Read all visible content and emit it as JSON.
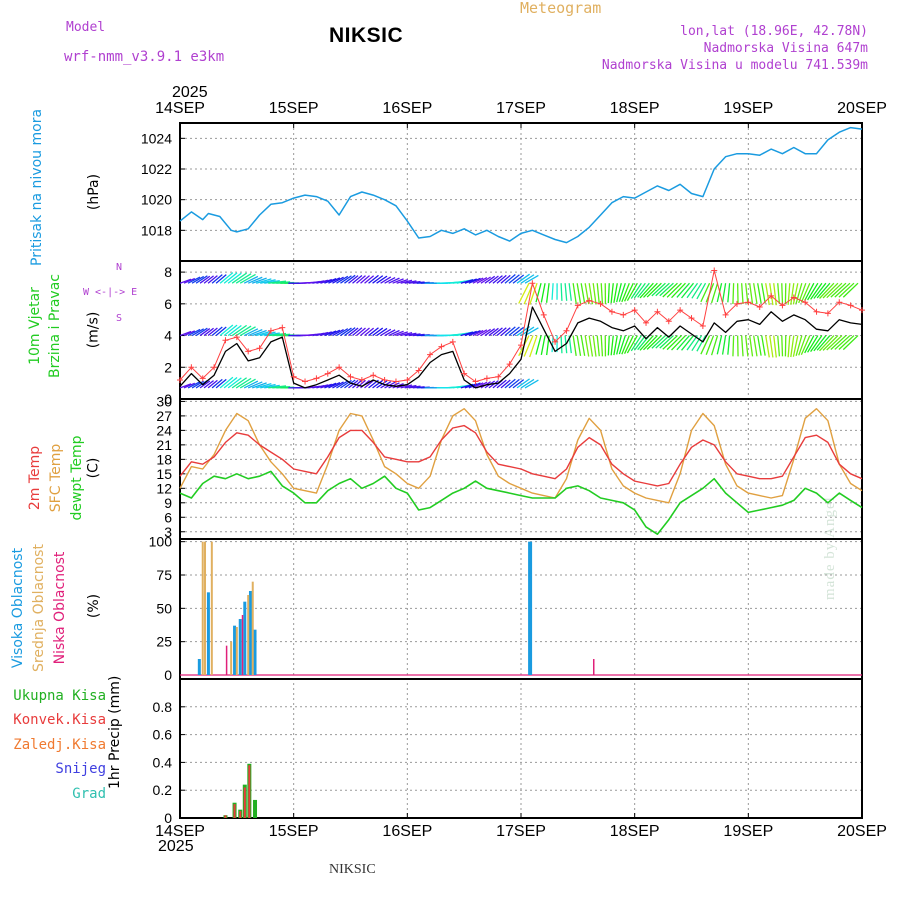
{
  "header": {
    "model_label": "Model",
    "model_name": "wrf-nmm_v3.9.1 e3km",
    "station": "NIKSIC",
    "meteogram": "Meteogram",
    "lonlat": "lon,lat (18.96E, 42.78N)",
    "altitude": "Nadmorska Visina 647m",
    "model_altitude": "Nadmorska Visina u modelu 741.539m",
    "year_top": "2025",
    "year_bottom": "2025",
    "footer_station": "NIKSIC",
    "credit": "made by Angel"
  },
  "colors": {
    "pressure": "#1a9be0",
    "t2m": "#e83c3c",
    "tsfc": "#e0a040",
    "dew": "#22cc22",
    "wind_black": "#000000",
    "wind_red": "#ff4040",
    "high_cloud": "#1a9be0",
    "mid_cloud": "#e0b060",
    "low_cloud": "#e0207a",
    "total_precip": "#22b022",
    "conv_precip": "#e83c3c",
    "frz_precip": "#f07a30",
    "snow": "#4040e0",
    "hail": "#30c0b0"
  },
  "chart_data": [
    {
      "type": "line",
      "name": "pressure",
      "title": "Pritisak na nivou mora",
      "ylabel": "(hPa)",
      "ylim": [
        1016,
        1025
      ],
      "yticks": [
        "1018",
        "1020",
        "1022",
        "1024"
      ],
      "ytick_values": [
        1018,
        1020,
        1022,
        1024
      ],
      "x_range_days": [
        0,
        6
      ],
      "xticks": [
        "14SEP",
        "15SEP",
        "16SEP",
        "17SEP",
        "18SEP",
        "19SEP",
        "20SEP"
      ],
      "series": [
        {
          "name": "MSLP",
          "x": [
            0,
            0.1,
            0.2,
            0.25,
            0.35,
            0.45,
            0.5,
            0.6,
            0.7,
            0.8,
            0.9,
            1.0,
            1.1,
            1.2,
            1.3,
            1.4,
            1.5,
            1.6,
            1.7,
            1.8,
            1.9,
            2.0,
            2.1,
            2.2,
            2.3,
            2.4,
            2.5,
            2.6,
            2.7,
            2.8,
            2.9,
            3.0,
            3.1,
            3.2,
            3.3,
            3.4,
            3.5,
            3.6,
            3.7,
            3.8,
            3.9,
            4.0,
            4.1,
            4.2,
            4.3,
            4.4,
            4.5,
            4.6,
            4.7,
            4.8,
            4.9,
            5.0,
            5.1,
            5.2,
            5.3,
            5.4,
            5.5,
            5.6,
            5.7,
            5.8,
            5.9,
            6.0
          ],
          "values": [
            1018.6,
            1019.2,
            1018.7,
            1019.1,
            1018.9,
            1018.0,
            1017.9,
            1018.1,
            1019.0,
            1019.7,
            1019.8,
            1020.1,
            1020.3,
            1020.2,
            1019.9,
            1019.0,
            1020.2,
            1020.5,
            1020.3,
            1020.0,
            1019.6,
            1018.6,
            1017.5,
            1017.6,
            1018.0,
            1017.8,
            1018.1,
            1017.7,
            1018.0,
            1017.6,
            1017.3,
            1017.8,
            1018.0,
            1017.7,
            1017.4,
            1017.2,
            1017.6,
            1018.2,
            1019.0,
            1019.8,
            1020.2,
            1020.1,
            1020.5,
            1020.9,
            1020.6,
            1021.0,
            1020.4,
            1020.2,
            1022.0,
            1022.8,
            1023.0,
            1023.0,
            1022.9,
            1023.3,
            1023.0,
            1023.4,
            1023.0,
            1023.0,
            1023.9,
            1024.4,
            1024.7,
            1024.6
          ]
        }
      ]
    },
    {
      "type": "line",
      "name": "wind",
      "title": "10m Vjetar Brzina i Pravac",
      "ylabel": "(m/s)",
      "compass": "W <-|-> E",
      "compass_top": "N",
      "compass_bottom": "S",
      "ylim": [
        0,
        8.7
      ],
      "yticks": [
        "0",
        "2",
        "4",
        "6",
        "8"
      ],
      "ytick_values": [
        0,
        2,
        4,
        6,
        8
      ],
      "arrow_bands": [
        0.7,
        4.0,
        7.3
      ],
      "series": [
        {
          "name": "mean speed",
          "x": [
            0,
            0.1,
            0.2,
            0.3,
            0.4,
            0.5,
            0.6,
            0.7,
            0.8,
            0.9,
            1.0,
            1.1,
            1.2,
            1.3,
            1.4,
            1.5,
            1.6,
            1.7,
            1.8,
            1.9,
            2.0,
            2.1,
            2.2,
            2.3,
            2.4,
            2.5,
            2.6,
            2.7,
            2.8,
            2.9,
            3.0,
            3.1,
            3.2,
            3.3,
            3.4,
            3.5,
            3.6,
            3.7,
            3.8,
            3.9,
            4.0,
            4.1,
            4.2,
            4.3,
            4.4,
            4.5,
            4.6,
            4.7,
            4.8,
            4.9,
            5.0,
            5.1,
            5.2,
            5.3,
            5.4,
            5.5,
            5.6,
            5.7,
            5.8,
            5.9,
            6.0
          ],
          "values": [
            0.8,
            1.6,
            0.9,
            1.5,
            3.0,
            3.5,
            2.4,
            2.6,
            3.6,
            3.9,
            1.0,
            0.7,
            0.9,
            1.2,
            1.5,
            1.0,
            0.8,
            1.2,
            0.9,
            0.8,
            0.9,
            1.4,
            2.3,
            2.8,
            3.0,
            1.2,
            0.7,
            0.9,
            1.0,
            1.6,
            2.5,
            5.8,
            4.4,
            3.0,
            3.5,
            4.8,
            5.1,
            4.9,
            4.5,
            4.3,
            4.6,
            3.8,
            4.5,
            3.9,
            4.6,
            4.1,
            3.6,
            4.8,
            4.2,
            4.9,
            5.0,
            4.7,
            5.5,
            4.9,
            5.3,
            5.0,
            4.4,
            4.3,
            5.0,
            4.8,
            4.7
          ]
        },
        {
          "name": "gust",
          "x": [
            0,
            0.1,
            0.2,
            0.3,
            0.4,
            0.5,
            0.6,
            0.7,
            0.8,
            0.9,
            1.0,
            1.1,
            1.2,
            1.3,
            1.4,
            1.5,
            1.6,
            1.7,
            1.8,
            1.9,
            2.0,
            2.1,
            2.2,
            2.3,
            2.4,
            2.5,
            2.6,
            2.7,
            2.8,
            2.9,
            3.0,
            3.1,
            3.2,
            3.3,
            3.4,
            3.5,
            3.6,
            3.7,
            3.8,
            3.9,
            4.0,
            4.1,
            4.2,
            4.3,
            4.4,
            4.5,
            4.6,
            4.7,
            4.8,
            4.9,
            5.0,
            5.1,
            5.2,
            5.3,
            5.4,
            5.5,
            5.6,
            5.7,
            5.8,
            5.9,
            6.0
          ],
          "values": [
            1.2,
            2.0,
            1.3,
            2.0,
            3.7,
            3.9,
            3.0,
            3.2,
            4.3,
            4.5,
            1.4,
            1.1,
            1.3,
            1.6,
            2.0,
            1.4,
            1.2,
            1.5,
            1.2,
            1.1,
            1.2,
            1.8,
            2.8,
            3.3,
            3.6,
            1.6,
            1.1,
            1.3,
            1.4,
            2.2,
            3.4,
            7.3,
            5.3,
            3.6,
            4.3,
            5.9,
            6.2,
            6.0,
            5.5,
            5.3,
            5.6,
            4.8,
            5.5,
            4.9,
            5.6,
            5.1,
            4.6,
            8.1,
            5.3,
            6.0,
            6.1,
            5.8,
            6.5,
            5.9,
            6.4,
            6.1,
            5.5,
            5.4,
            6.1,
            5.9,
            5.6
          ]
        }
      ]
    },
    {
      "type": "line",
      "name": "temperature",
      "title": "2m Temp",
      "title2": "SFC Temp",
      "title3": "dewpt Temp",
      "ylabel": "(C)",
      "ylim": [
        1.5,
        30.5
      ],
      "yticks": [
        "3",
        "6",
        "9",
        "12",
        "15",
        "18",
        "21",
        "24",
        "27",
        "30"
      ],
      "ytick_values": [
        3,
        6,
        9,
        12,
        15,
        18,
        21,
        24,
        27,
        30
      ],
      "series": [
        {
          "name": "2m Temp",
          "x": [
            0,
            0.1,
            0.2,
            0.3,
            0.4,
            0.5,
            0.6,
            0.7,
            0.8,
            0.9,
            1.0,
            1.1,
            1.2,
            1.3,
            1.4,
            1.5,
            1.6,
            1.7,
            1.8,
            1.9,
            2.0,
            2.1,
            2.2,
            2.3,
            2.4,
            2.5,
            2.6,
            2.7,
            2.8,
            2.9,
            3.0,
            3.1,
            3.2,
            3.3,
            3.4,
            3.5,
            3.6,
            3.7,
            3.8,
            3.9,
            4.0,
            4.1,
            4.2,
            4.3,
            4.4,
            4.5,
            4.6,
            4.7,
            4.8,
            4.9,
            5.0,
            5.1,
            5.2,
            5.3,
            5.4,
            5.5,
            5.6,
            5.7,
            5.8,
            5.9,
            6.0
          ],
          "values": [
            14.5,
            17.5,
            17.0,
            18.5,
            21.5,
            23.5,
            23.0,
            21.0,
            19.5,
            18.0,
            16.0,
            15.5,
            15.0,
            18.5,
            22.5,
            24.0,
            24.0,
            21.5,
            18.5,
            18.0,
            17.5,
            17.5,
            18.5,
            22.0,
            24.5,
            25.0,
            23.5,
            19.5,
            17.0,
            16.5,
            16.0,
            15.0,
            14.5,
            14.0,
            16.0,
            20.5,
            22.5,
            21.0,
            17.0,
            15.0,
            13.5,
            13.0,
            12.5,
            13.0,
            17.0,
            20.5,
            22.0,
            21.0,
            17.5,
            15.0,
            14.5,
            14.0,
            14.0,
            14.5,
            18.5,
            22.5,
            23.0,
            21.5,
            17.0,
            15.0,
            14.0
          ]
        },
        {
          "name": "SFC Temp",
          "x": [
            0,
            0.1,
            0.2,
            0.3,
            0.4,
            0.5,
            0.6,
            0.7,
            0.8,
            0.9,
            1.0,
            1.1,
            1.2,
            1.3,
            1.4,
            1.5,
            1.6,
            1.7,
            1.8,
            1.9,
            2.0,
            2.1,
            2.2,
            2.3,
            2.4,
            2.5,
            2.6,
            2.7,
            2.8,
            2.9,
            3.0,
            3.1,
            3.2,
            3.3,
            3.4,
            3.5,
            3.6,
            3.7,
            3.8,
            3.9,
            4.0,
            4.1,
            4.2,
            4.3,
            4.4,
            4.5,
            4.6,
            4.7,
            4.8,
            4.9,
            5.0,
            5.1,
            5.2,
            5.3,
            5.4,
            5.5,
            5.6,
            5.7,
            5.8,
            5.9,
            6.0
          ],
          "values": [
            12.0,
            16.5,
            16.0,
            19.0,
            24.0,
            27.5,
            26.0,
            21.0,
            17.5,
            15.0,
            12.0,
            11.5,
            11.0,
            17.0,
            24.0,
            27.5,
            27.0,
            22.0,
            16.5,
            15.0,
            13.0,
            12.0,
            14.5,
            22.0,
            27.0,
            28.5,
            26.0,
            19.0,
            14.5,
            13.0,
            12.0,
            11.0,
            10.5,
            10.0,
            14.0,
            22.0,
            26.5,
            24.0,
            16.0,
            12.5,
            11.0,
            10.0,
            9.5,
            9.0,
            15.0,
            24.0,
            27.5,
            25.0,
            17.0,
            12.5,
            11.0,
            10.5,
            10.0,
            10.5,
            18.0,
            26.5,
            28.5,
            26.0,
            17.0,
            13.0,
            11.5
          ]
        },
        {
          "name": "dewpt Temp",
          "x": [
            0,
            0.1,
            0.2,
            0.3,
            0.4,
            0.5,
            0.6,
            0.7,
            0.8,
            0.9,
            1.0,
            1.1,
            1.2,
            1.3,
            1.4,
            1.5,
            1.6,
            1.7,
            1.8,
            1.9,
            2.0,
            2.1,
            2.2,
            2.3,
            2.4,
            2.5,
            2.6,
            2.7,
            2.8,
            2.9,
            3.0,
            3.1,
            3.2,
            3.3,
            3.4,
            3.5,
            3.6,
            3.7,
            3.8,
            3.9,
            4.0,
            4.1,
            4.2,
            4.3,
            4.4,
            4.5,
            4.6,
            4.7,
            4.8,
            4.9,
            5.0,
            5.1,
            5.2,
            5.3,
            5.4,
            5.5,
            5.6,
            5.7,
            5.8,
            5.9,
            6.0
          ],
          "values": [
            11.0,
            10.0,
            13.0,
            14.5,
            14.0,
            15.0,
            14.0,
            14.5,
            15.5,
            12.5,
            11.0,
            9.0,
            9.0,
            11.5,
            13.0,
            14.0,
            12.0,
            13.0,
            14.5,
            12.0,
            11.0,
            7.5,
            8.0,
            9.5,
            11.0,
            12.0,
            13.5,
            12.0,
            11.5,
            11.0,
            10.5,
            10.0,
            10.0,
            10.0,
            12.0,
            12.5,
            11.5,
            10.0,
            9.5,
            9.0,
            7.5,
            4.0,
            2.5,
            5.5,
            9.0,
            10.5,
            12.0,
            14.0,
            11.0,
            9.0,
            7.0,
            7.5,
            8.0,
            8.5,
            9.5,
            12.0,
            11.0,
            9.0,
            11.0,
            9.5,
            8.0
          ]
        }
      ]
    },
    {
      "type": "bar",
      "name": "cloud",
      "title": "Visoka Oblacnost",
      "title2": "Srednja Oblacnost",
      "title3": "Niska Oblacnost",
      "ylabel": "(%)",
      "ylim": [
        -3,
        102
      ],
      "yticks": [
        "0",
        "25",
        "50",
        "75",
        "100"
      ],
      "ytick_values": [
        0,
        25,
        50,
        75,
        100
      ],
      "series": [
        {
          "name": "high",
          "x": [
            0.17,
            0.25,
            0.48,
            0.53,
            0.57,
            0.62,
            0.66,
            3.08
          ],
          "values": [
            12,
            62,
            37,
            42,
            55,
            63,
            34,
            100
          ]
        },
        {
          "name": "mid",
          "x": [
            0.2,
            0.22,
            0.28,
            0.45,
            0.5,
            0.6,
            0.64
          ],
          "values": [
            100,
            100,
            100,
            25,
            36,
            60,
            70
          ]
        },
        {
          "name": "low",
          "x": [
            0.41,
            0.55,
            3.64
          ],
          "values": [
            22,
            45,
            12
          ]
        }
      ]
    },
    {
      "type": "bar",
      "name": "precip",
      "title": "1hr Precip",
      "ylabel": "(mm)",
      "ylim": [
        0,
        1.0
      ],
      "yticks": [
        "0",
        "0.2",
        "0.4",
        "0.6",
        "0.8"
      ],
      "ytick_values": [
        0,
        0.2,
        0.4,
        0.6,
        0.8
      ],
      "legend": [
        "Ukupna Kisa",
        "Konvek.Kisa",
        "Zaledj.Kisa",
        "Snijeg",
        "Grad"
      ],
      "series": [
        {
          "name": "Ukupna Kisa",
          "x": [
            0.4,
            0.48,
            0.53,
            0.57,
            0.61,
            0.66
          ],
          "values": [
            0.02,
            0.11,
            0.06,
            0.24,
            0.39,
            0.13
          ]
        },
        {
          "name": "Konvek.Kisa",
          "x": [
            0.4,
            0.48,
            0.53,
            0.57,
            0.61
          ],
          "values": [
            0.02,
            0.1,
            0.05,
            0.22,
            0.38
          ]
        }
      ]
    }
  ]
}
